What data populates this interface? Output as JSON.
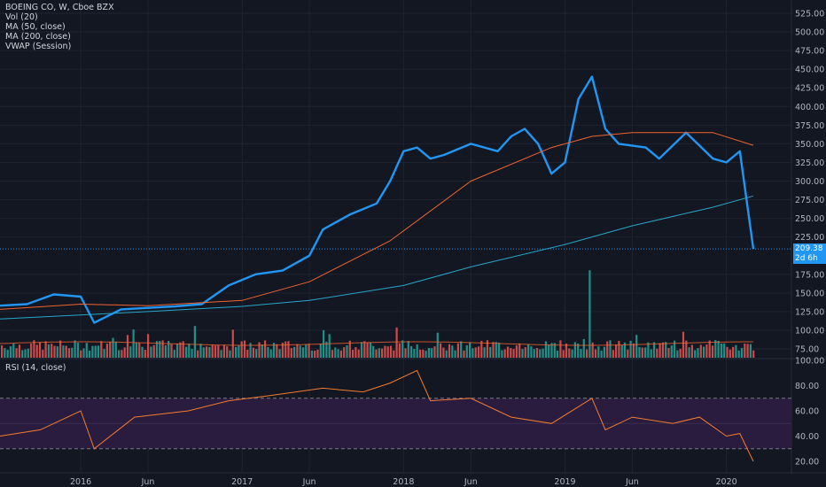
{
  "legend": {
    "symbol": "BOEING CO, W, Cboe BZX",
    "vol": "Vol (20)",
    "ma50": "MA (50, close)",
    "ma200": "MA (200, close)",
    "vwap": "VWAP (Session)"
  },
  "rsi_legend": "RSI (14, close)",
  "badges": {
    "price": "209.38",
    "countdown": "2d 6h"
  },
  "colors": {
    "background": "#131722",
    "price_line": "#2196f3",
    "ma50": "#f0642f",
    "ma200": "#26a7c8",
    "vol_up": "#26a69a",
    "vol_down": "#ef5350",
    "rsi_line": "#f57c2c",
    "rsi_band": "#2a1c3f"
  },
  "chart_data": [
    {
      "type": "line",
      "title": "BOEING CO, W, Cboe BZX",
      "x_ticks": [
        "2016",
        "Jun",
        "2017",
        "Jun",
        "2018",
        "Jun",
        "2019",
        "Jun",
        "2020"
      ],
      "y_ticks": [
        "525.00",
        "500.00",
        "475.00",
        "450.00",
        "425.00",
        "400.00",
        "375.00",
        "350.00",
        "325.00",
        "300.00",
        "275.00",
        "250.00",
        "225.00",
        "175.00",
        "150.00",
        "125.00",
        "100.00",
        "75.00"
      ],
      "ylim": [
        60,
        535
      ],
      "x_range": [
        "2015-07",
        "2020-03"
      ],
      "series": [
        {
          "name": "Close",
          "x": [
            "2015-07",
            "2015-09",
            "2015-11",
            "2016-01",
            "2016-02",
            "2016-04",
            "2016-06",
            "2016-08",
            "2016-10",
            "2016-12",
            "2017-02",
            "2017-04",
            "2017-06",
            "2017-07",
            "2017-09",
            "2017-11",
            "2017-12",
            "2018-01",
            "2018-02",
            "2018-03",
            "2018-04",
            "2018-06",
            "2018-08",
            "2018-09",
            "2018-10",
            "2018-11",
            "2018-12",
            "2019-01",
            "2019-02",
            "2019-03",
            "2019-04",
            "2019-05",
            "2019-07",
            "2019-08",
            "2019-10",
            "2019-12",
            "2020-01",
            "2020-02",
            "2020-03"
          ],
          "values": [
            133,
            135,
            148,
            145,
            110,
            128,
            130,
            132,
            135,
            160,
            175,
            180,
            200,
            235,
            255,
            270,
            300,
            340,
            345,
            330,
            335,
            350,
            340,
            360,
            370,
            350,
            310,
            325,
            410,
            440,
            370,
            350,
            345,
            330,
            365,
            330,
            325,
            340,
            209
          ]
        },
        {
          "name": "MA (50, close)",
          "x": [
            "2015-07",
            "2016-01",
            "2016-06",
            "2017-01",
            "2017-06",
            "2017-12",
            "2018-06",
            "2018-12",
            "2019-03",
            "2019-06",
            "2019-09",
            "2019-12",
            "2020-03"
          ],
          "values": [
            128,
            135,
            133,
            140,
            165,
            220,
            300,
            345,
            360,
            365,
            365,
            365,
            348
          ]
        },
        {
          "name": "MA (200, close)",
          "x": [
            "2015-07",
            "2016-06",
            "2017-01",
            "2017-06",
            "2018-01",
            "2018-06",
            "2019-01",
            "2019-06",
            "2019-12",
            "2020-03"
          ],
          "values": [
            115,
            125,
            132,
            140,
            160,
            185,
            215,
            240,
            265,
            280
          ]
        }
      ],
      "annotations": [
        "Vol (20)",
        "MA (50, close)",
        "MA (200, close)",
        "VWAP (Session)",
        "209.38",
        "2d 6h"
      ]
    },
    {
      "type": "line",
      "title": "RSI (14, close)",
      "y_ticks": [
        "100.00",
        "80.00",
        "60.00",
        "40.00",
        "20.00"
      ],
      "ylim": [
        18,
        100
      ],
      "bands": [
        30,
        70
      ],
      "series": [
        {
          "name": "RSI",
          "x": [
            "2015-07",
            "2015-10",
            "2016-01",
            "2016-02",
            "2016-05",
            "2016-09",
            "2016-12",
            "2017-03",
            "2017-07",
            "2017-10",
            "2017-12",
            "2018-02",
            "2018-03",
            "2018-06",
            "2018-09",
            "2018-12",
            "2019-03",
            "2019-04",
            "2019-06",
            "2019-09",
            "2019-11",
            "2020-01",
            "2020-02",
            "2020-03"
          ],
          "values": [
            40,
            45,
            60,
            30,
            55,
            60,
            68,
            72,
            78,
            75,
            82,
            92,
            68,
            70,
            55,
            50,
            70,
            45,
            55,
            50,
            55,
            40,
            42,
            20
          ]
        }
      ]
    }
  ]
}
